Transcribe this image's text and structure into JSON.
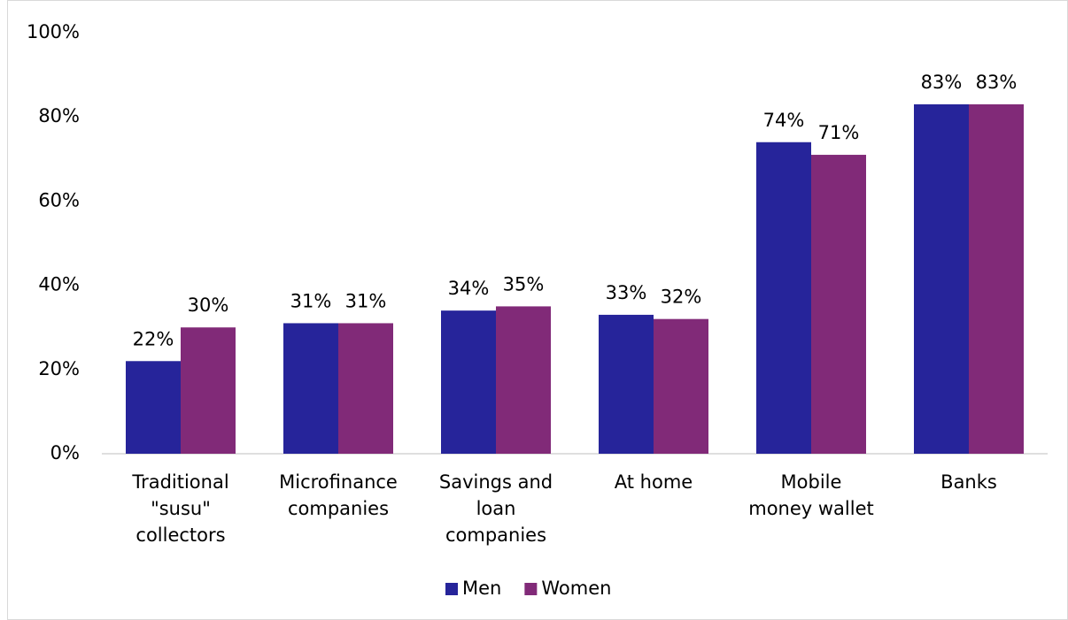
{
  "chart_data": {
    "type": "bar",
    "categories": [
      "Traditional\n\"susu\"\ncollectors",
      "Microfinance\ncompanies",
      "Savings and\nloan\ncompanies",
      "At home",
      "Mobile\nmoney wallet",
      "Banks"
    ],
    "series": [
      {
        "name": "Men",
        "color": "#26249a",
        "values": [
          22,
          31,
          34,
          33,
          74,
          83
        ],
        "value_labels": [
          "22%",
          "31%",
          "34%",
          "33%",
          "74%",
          "83%"
        ]
      },
      {
        "name": "Women",
        "color": "#812a78",
        "values": [
          30,
          31,
          35,
          32,
          71,
          83
        ],
        "value_labels": [
          "30%",
          "31%",
          "35%",
          "32%",
          "71%",
          "83%"
        ]
      }
    ],
    "ylim": [
      0,
      100
    ],
    "yticks": [
      {
        "value": 0,
        "label": "0%"
      },
      {
        "value": 20,
        "label": "20%"
      },
      {
        "value": 40,
        "label": "40%"
      },
      {
        "value": 60,
        "label": "60%"
      },
      {
        "value": 80,
        "label": "80%"
      },
      {
        "value": 100,
        "label": "100%"
      }
    ],
    "grid": false,
    "legend": "bottom"
  }
}
